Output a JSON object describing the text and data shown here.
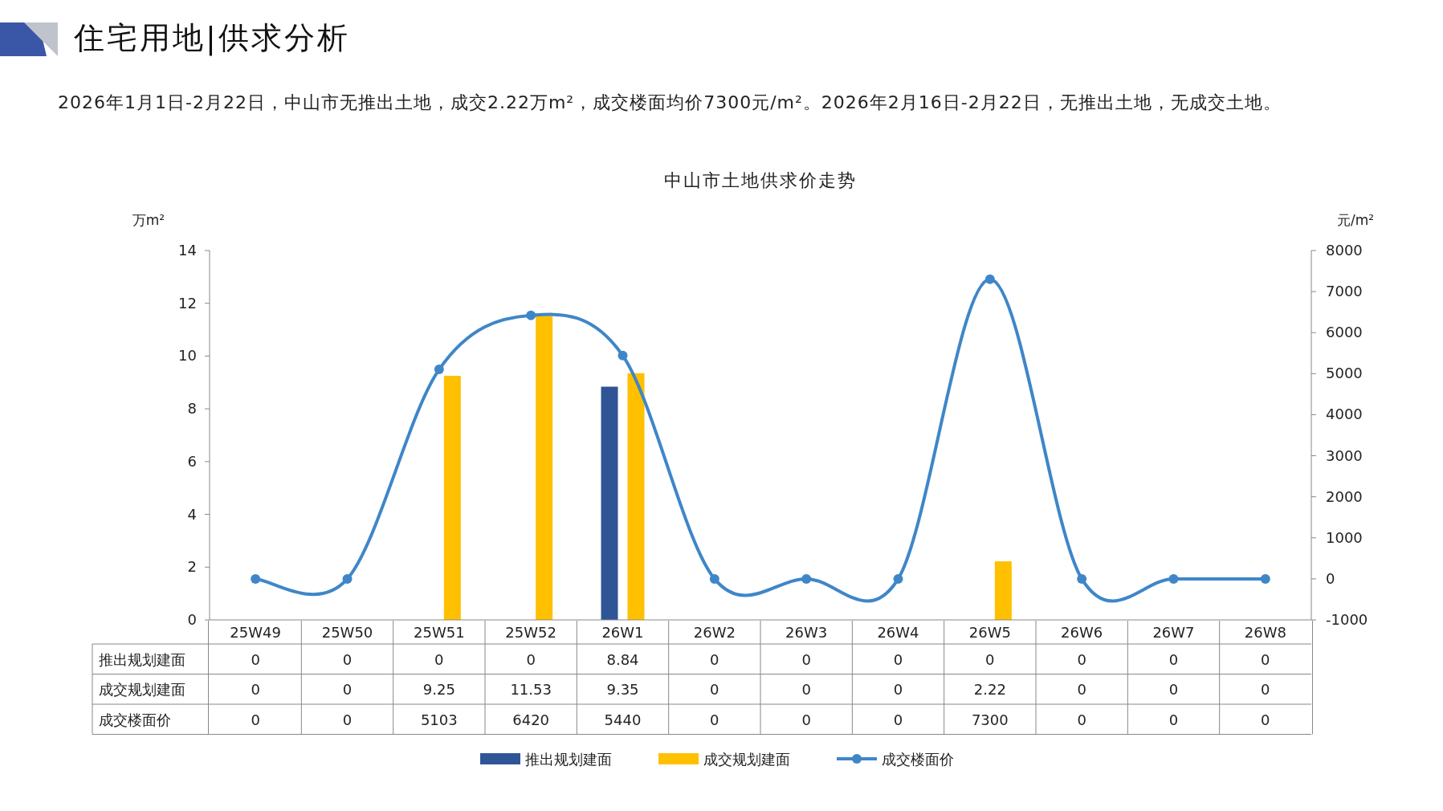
{
  "chart_data": {
    "type": "bar",
    "title": "中山市土地供求价走势",
    "annotations": [
      "住宅用地|供求分析",
      "2026年1月1日-2月22日，中山市无推出土地，成交2.22万m²，成交楼面均价7300元/m²。2026年2月16日-2月22日，无推出土地，无成交土地。"
    ],
    "ylabel": "万m²",
    "y2label": "元/m²",
    "categories": [
      "25W49",
      "25W50",
      "25W51",
      "25W52",
      "26W1",
      "26W2",
      "26W3",
      "26W4",
      "26W5",
      "26W6",
      "26W7",
      "26W8"
    ],
    "series": [
      {
        "name": "推出规划建面",
        "color": "#2f5597",
        "values": [
          0,
          0,
          0,
          0,
          8.84,
          0,
          0,
          0,
          0,
          0,
          0,
          0
        ]
      },
      {
        "name": "成交规划建面",
        "color": "#ffc000",
        "values": [
          0,
          0,
          9.25,
          11.53,
          9.35,
          0,
          0,
          0,
          2.22,
          0,
          0,
          0
        ]
      },
      {
        "name": "成交楼面价",
        "type": "line",
        "axis": "y2",
        "color": "#3f86c8",
        "marker": "circle",
        "values": [
          0,
          0,
          5103,
          6420,
          5440,
          0,
          0,
          0,
          7300,
          0,
          0,
          0
        ]
      }
    ],
    "ylim": [
      0,
      14
    ],
    "yticks": [
      0,
      2,
      4,
      6,
      8,
      10,
      12,
      14
    ],
    "y2lim": [
      -1000,
      8000
    ],
    "y2ticks": [
      -1000,
      0,
      1000,
      2000,
      3000,
      4000,
      5000,
      6000,
      7000,
      8000
    ],
    "data_labels": true,
    "legend": "bottom",
    "grid": false
  }
}
